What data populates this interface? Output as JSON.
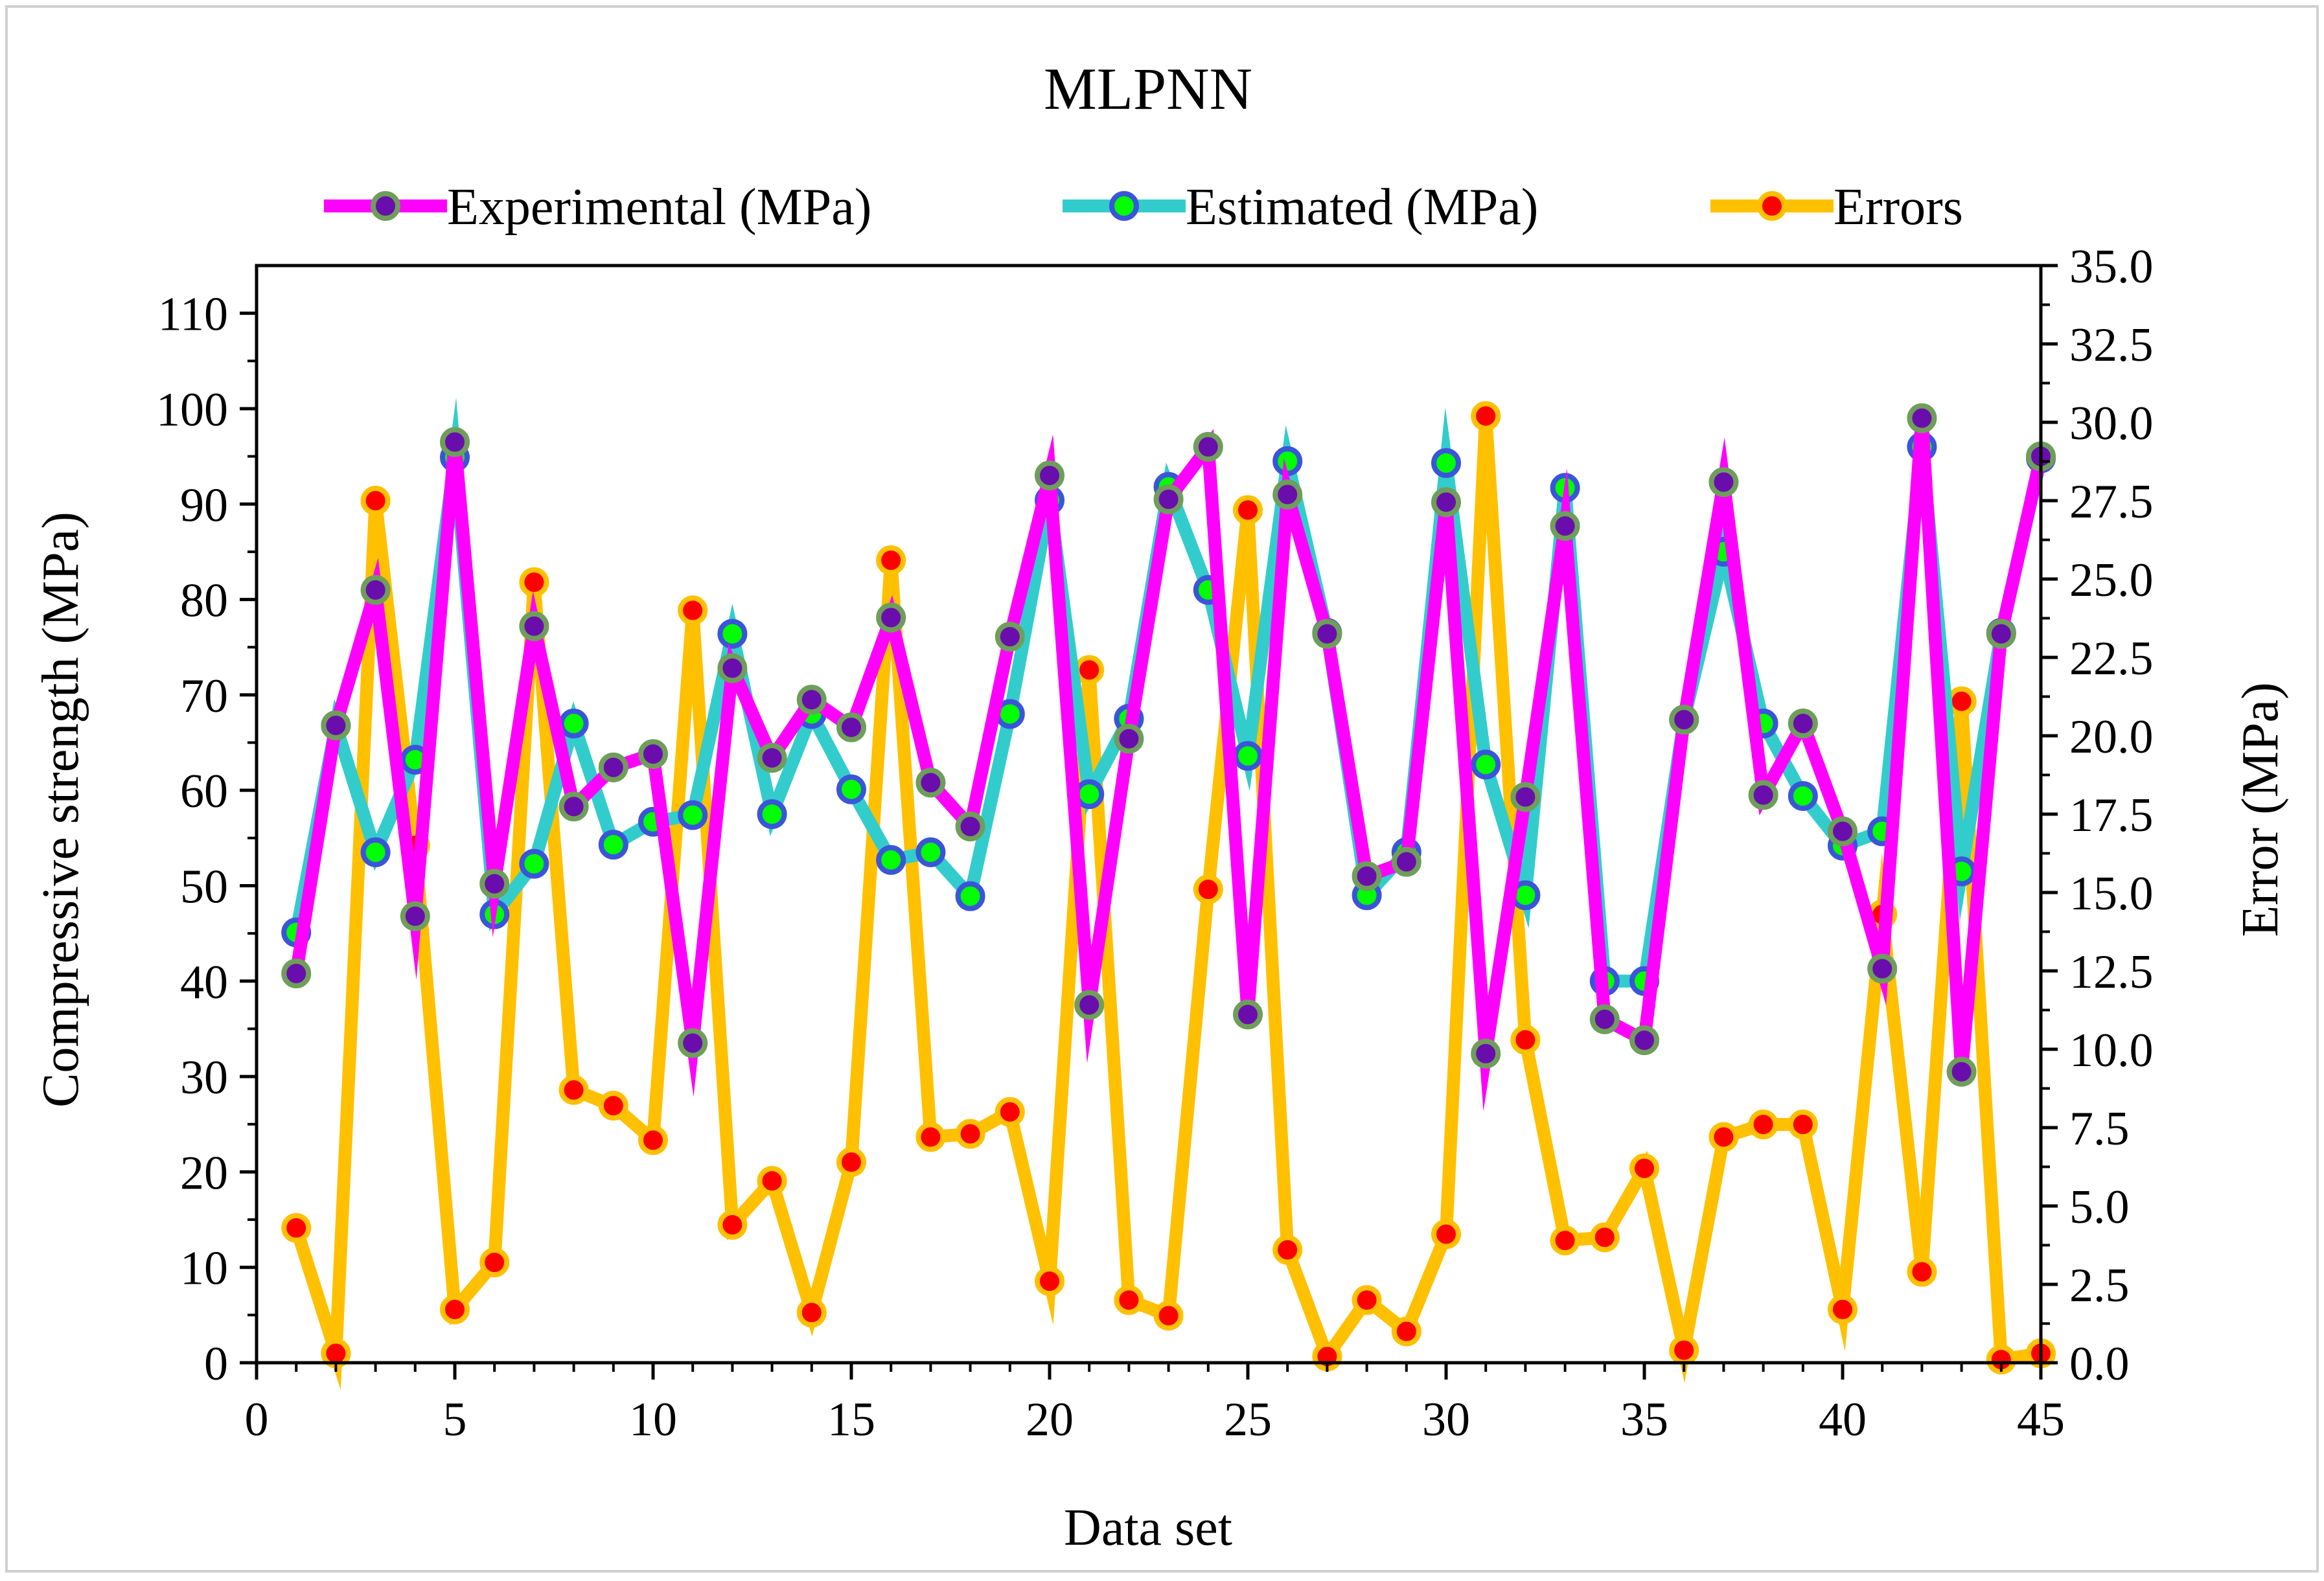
{
  "chart_data": {
    "type": "line",
    "title": "MLPNN",
    "xlabel": "Data set",
    "ylabel": "Compressive strength (MPa)",
    "ylabel_right": "Error (MPa)",
    "xlim": [
      0,
      45
    ],
    "ylim": [
      0,
      115
    ],
    "ylim_right": [
      0,
      35
    ],
    "x_ticks": [
      0,
      5,
      10,
      15,
      20,
      25,
      30,
      35,
      40,
      45
    ],
    "y_ticks": [
      0,
      10,
      20,
      30,
      40,
      50,
      60,
      70,
      80,
      90,
      100,
      110
    ],
    "y_ticks_right": [
      "0.0",
      "2.5",
      "5.0",
      "7.5",
      "10.0",
      "12.5",
      "15.0",
      "17.5",
      "20.0",
      "22.5",
      "25.0",
      "27.5",
      "30.0",
      "32.5",
      "35.0"
    ],
    "legend_position": "top-center",
    "x": [
      1,
      2,
      3,
      4,
      5,
      6,
      7,
      8,
      9,
      10,
      11,
      12,
      13,
      14,
      15,
      16,
      17,
      18,
      19,
      20,
      21,
      22,
      23,
      24,
      25,
      26,
      27,
      28,
      29,
      30,
      31,
      32,
      33,
      34,
      35,
      36,
      37,
      38,
      39,
      40,
      41,
      42,
      43,
      44,
      45
    ],
    "series": [
      {
        "name": "Experimental (MPa)",
        "axis": "left",
        "line_color": "#ff00ff",
        "marker_fill": "#6a0dad",
        "marker_edge": "#6e9e5a",
        "values": [
          40.8,
          66.8,
          81.0,
          46.8,
          96.5,
          50.2,
          77.2,
          58.3,
          62.4,
          63.8,
          33.5,
          72.8,
          63.4,
          69.5,
          66.6,
          78.1,
          60.8,
          56.2,
          76.1,
          93.0,
          37.5,
          65.4,
          90.5,
          96.0,
          36.5,
          91.0,
          76.4,
          51.0,
          52.5,
          90.2,
          32.4,
          59.3,
          87.7,
          36.0,
          33.8,
          67.4,
          92.3,
          59.5,
          67.0,
          55.7,
          41.3,
          99.0,
          30.5,
          76.4,
          95.0
        ]
      },
      {
        "name": "Estimated (MPa)",
        "axis": "left",
        "line_color": "#33cccc",
        "marker_fill": "#00ff00",
        "marker_edge": "#3a55d9",
        "values": [
          45.1,
          66.8,
          53.5,
          63.2,
          94.9,
          47.0,
          52.3,
          67.0,
          54.3,
          56.7,
          57.4,
          76.4,
          57.5,
          68.0,
          60.1,
          52.7,
          53.5,
          48.9,
          68.0,
          90.4,
          59.6,
          67.5,
          91.8,
          81.0,
          63.6,
          94.5,
          76.5,
          49.0,
          53.5,
          94.3,
          62.7,
          49.0,
          91.7,
          40.0,
          40.0,
          67.4,
          85.0,
          67.0,
          59.4,
          54.2,
          55.7,
          96.0,
          51.5,
          76.5,
          94.8
        ]
      },
      {
        "name": "Errors",
        "axis": "right",
        "line_color": "#ffc000",
        "marker_fill": "#ff0000",
        "marker_edge": "#ffc000",
        "values": [
          4.3,
          0.3,
          27.5,
          16.5,
          1.7,
          3.2,
          24.9,
          8.7,
          8.2,
          7.1,
          24.0,
          4.4,
          5.8,
          1.6,
          6.4,
          25.6,
          7.2,
          7.3,
          8.0,
          2.6,
          22.1,
          2.0,
          1.5,
          15.1,
          27.2,
          3.6,
          0.2,
          2.0,
          1.0,
          4.1,
          30.2,
          10.3,
          3.9,
          4.0,
          6.2,
          0.4,
          7.2,
          7.6,
          7.6,
          1.7,
          14.3,
          2.9,
          21.1,
          0.1,
          0.3
        ]
      }
    ]
  }
}
